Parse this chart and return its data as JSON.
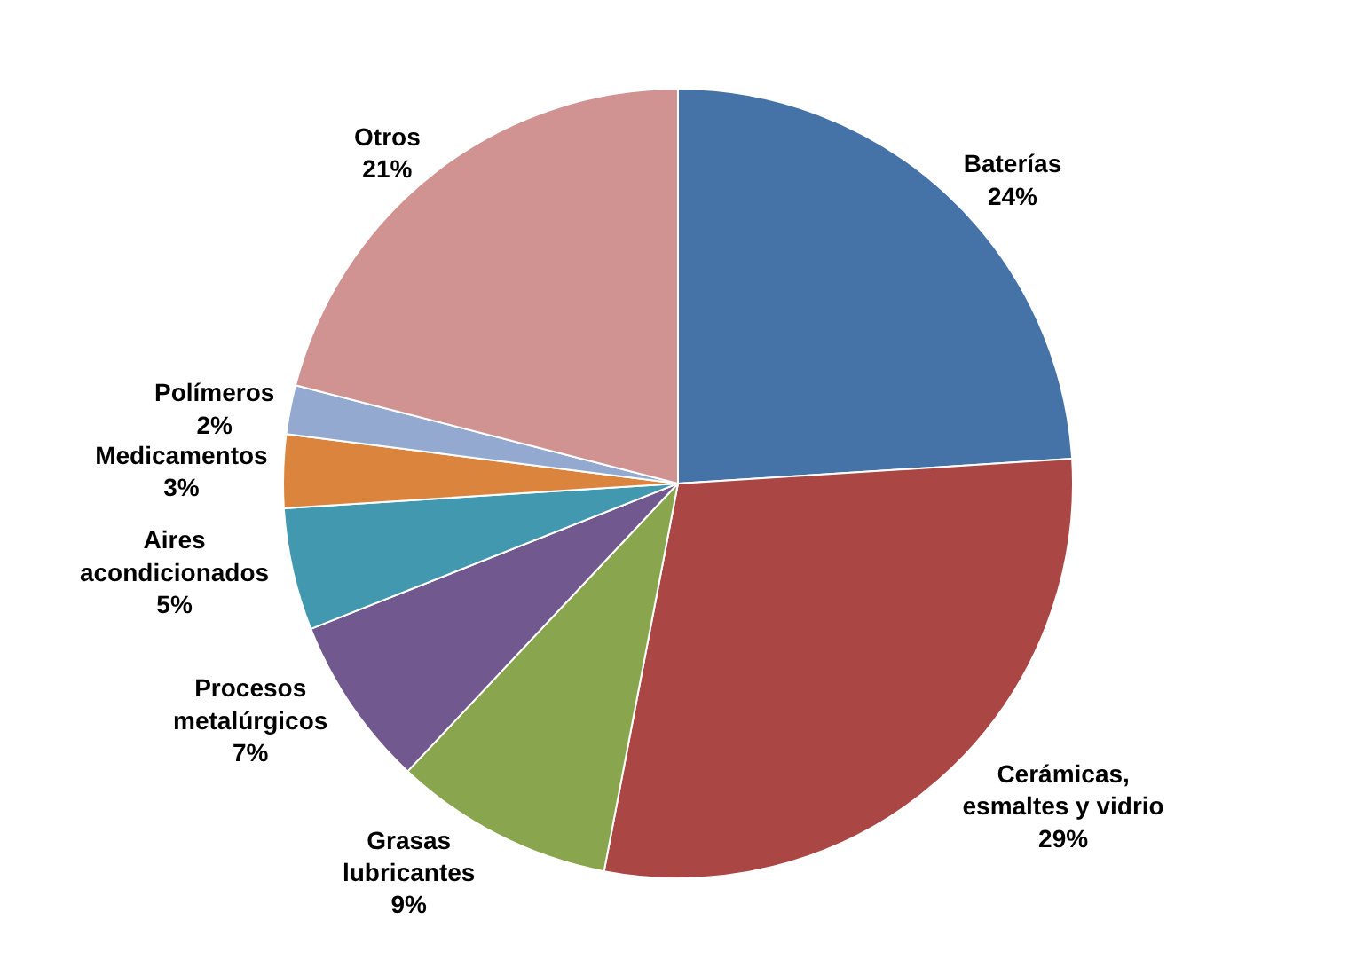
{
  "chart_data": {
    "type": "pie",
    "categories": [
      "Baterías",
      "Cerámicas, esmaltes y vidrio",
      "Grasas lubricantes",
      "Procesos metalúrgicos",
      "Aires acondicionados",
      "Medicamentos",
      "Polímeros",
      "Otros"
    ],
    "values": [
      24,
      29,
      9,
      7,
      5,
      3,
      2,
      21
    ],
    "value_labels": [
      "24%",
      "29%",
      "9%",
      "7%",
      "5%",
      "3%",
      "2%",
      "21%"
    ],
    "colors": [
      "#4572a7",
      "#aa4643",
      "#89a54e",
      "#71588f",
      "#4198af",
      "#db843d",
      "#93a9cf",
      "#d19392"
    ]
  }
}
